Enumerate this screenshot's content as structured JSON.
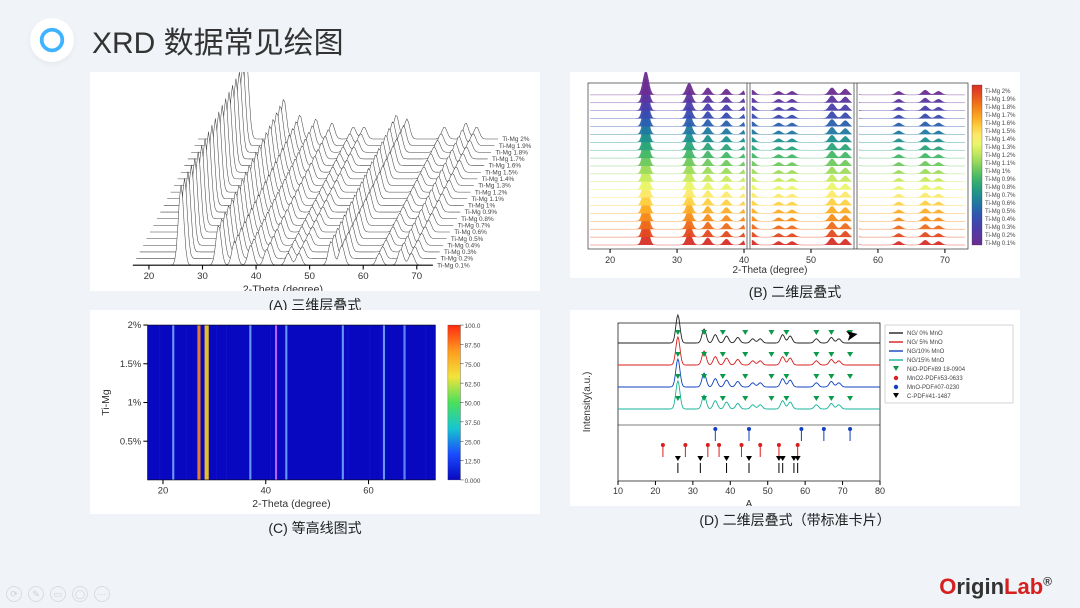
{
  "header": {
    "title": "XRD 数据常见绘图"
  },
  "brand": {
    "text": "OriginLab"
  },
  "panels": {
    "A": {
      "caption": "(A) 三维层叠式",
      "xlabel": "2-Theta (degree)",
      "xlim": [
        17,
        73
      ],
      "xticks": [
        20,
        30,
        40,
        50,
        60,
        70
      ]
    },
    "B": {
      "caption": "(B) 二维层叠式",
      "xlabel": "2-Theta (degree)",
      "xlim": [
        17,
        73
      ],
      "xticks": [
        20,
        30,
        40,
        50,
        60,
        70
      ]
    },
    "C": {
      "caption": "(C) 等高线图式",
      "xlabel": "2-Theta (degree)",
      "ylabel": "Ti-Mg",
      "xlim": [
        17,
        73
      ],
      "xticks": [
        20,
        40,
        60
      ],
      "ylim": [
        0.1,
        2.0
      ],
      "yticks": [
        "0.5%",
        "1%",
        "1.5%",
        "2%"
      ],
      "colorbar_ticks": [
        "0.000",
        "12.50",
        "25.00",
        "37.50",
        "50.00",
        "62.50",
        "75.00",
        "87.50",
        "100.0"
      ]
    },
    "D": {
      "caption": "(D) 二维层叠式（带标准卡片）",
      "xlabel": "A",
      "ylabel": "Intensity(a.u.)",
      "xlim": [
        10,
        80
      ],
      "xticks": [
        10,
        20,
        30,
        40,
        50,
        60,
        70,
        80
      ]
    }
  },
  "series_labels": [
    "Ti-Mg 2%",
    "Ti-Mg 1.9%",
    "Ti-Mg 1.8%",
    "Ti-Mg 1.7%",
    "Ti-Mg 1.6%",
    "Ti-Mg 1.5%",
    "Ti-Mg 1.4%",
    "Ti-Mg 1.3%",
    "Ti-Mg 1.2%",
    "Ti-Mg 1.1%",
    "Ti-Mg 1%",
    "Ti-Mg 0.9%",
    "Ti-Mg 0.8%",
    "Ti-Mg 0.7%",
    "Ti-Mg 0.6%",
    "Ti-Mg 0.5%",
    "Ti-Mg 0.4%",
    "Ti-Mg 0.3%",
    "Ti-Mg 0.2%",
    "Ti-Mg 0.1%"
  ],
  "rainbow_colors": [
    "#d73027",
    "#e34a1f",
    "#ee6b1a",
    "#f68d1b",
    "#fcae26",
    "#fed143",
    "#fbe96b",
    "#eaf56a",
    "#c7ea5e",
    "#9ddb5c",
    "#6fc95e",
    "#45b768",
    "#2ba47a",
    "#1f908d",
    "#2178a0",
    "#2b5fae",
    "#394bb0",
    "#4a3eab",
    "#5b359f",
    "#6a2d92"
  ],
  "peak_x": [
    26,
    33,
    36,
    39,
    42,
    46,
    48,
    54,
    56,
    63,
    67,
    69
  ],
  "peak_h": [
    1.0,
    0.5,
    0.3,
    0.25,
    0.2,
    0.15,
    0.15,
    0.3,
    0.25,
    0.15,
    0.2,
    0.15
  ],
  "panelC": {
    "bg": "#0808c0",
    "bands_x": [
      22,
      27,
      28.5,
      37,
      42,
      44,
      55,
      63,
      67
    ],
    "bands_color": [
      "#7aa8ff",
      "#ff8a1a",
      "#ffd21a",
      "#6fa8ff",
      "#c86bff",
      "#6fa8ff",
      "#6fa8ff",
      "#6fa8ff",
      "#6fa8ff"
    ],
    "bands_w": [
      2,
      3,
      4,
      2,
      2,
      2,
      2,
      2,
      2
    ]
  },
  "panelD": {
    "trace_colors": [
      "#222222",
      "#d81e1e",
      "#1040c0",
      "#15b39a"
    ],
    "legend": [
      {
        "label": "NG/ 0% MnO",
        "color": "#222222",
        "type": "line"
      },
      {
        "label": "NG/ 5% MnO",
        "color": "#d81e1e",
        "type": "line"
      },
      {
        "label": "NG/10% MnO",
        "color": "#1040c0",
        "type": "line"
      },
      {
        "label": "NG/15% MnO",
        "color": "#15b39a",
        "type": "line"
      },
      {
        "label": "NiO-PDF#89 18-0904",
        "color": "#0a9a4a",
        "type": "tri"
      },
      {
        "label": "MnO2-PDF#53-0633",
        "color": "#d81e1e",
        "type": "dot"
      },
      {
        "label": "MnO-PDF#07-0230",
        "color": "#1040c0",
        "type": "dot"
      },
      {
        "label": "C-PDF#41-1487",
        "color": "#000000",
        "type": "tri"
      }
    ],
    "ref_green_x": [
      26,
      33,
      38,
      44,
      51,
      55,
      63,
      67,
      72
    ],
    "ref_red_x": [
      22,
      28,
      34,
      37,
      43,
      48,
      53,
      58
    ],
    "ref_blue_x": [
      36,
      45,
      59,
      65,
      72
    ],
    "ref_black_x": [
      26,
      32,
      39,
      45,
      53,
      54,
      57,
      58
    ]
  }
}
